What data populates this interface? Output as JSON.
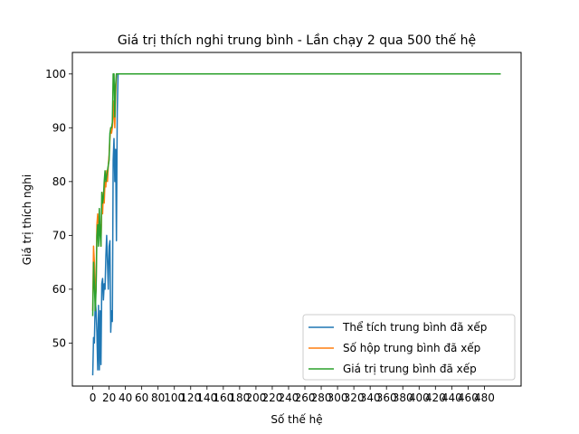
{
  "chart_data": {
    "type": "line",
    "title": "Giá trị thích nghi trung bình - Lần chạy 2 qua 500 thế hệ",
    "xlabel": "Số thế hệ",
    "ylabel": "Giá trị thích nghi",
    "xlim": [
      -25,
      525
    ],
    "ylim": [
      42,
      104
    ],
    "xticks": [
      0,
      20,
      40,
      60,
      80,
      100,
      120,
      140,
      160,
      180,
      200,
      220,
      240,
      260,
      280,
      300,
      320,
      340,
      360,
      380,
      400,
      420,
      440,
      460,
      480
    ],
    "yticks": [
      50,
      60,
      70,
      80,
      90,
      100
    ],
    "grid": false,
    "legend_position": "lower-right",
    "series": [
      {
        "name": "Thể tích trung bình đã xếp",
        "color": "#1f77b4",
        "x": [
          0,
          1,
          2,
          3,
          4,
          5,
          6,
          7,
          8,
          9,
          10,
          11,
          12,
          13,
          14,
          15,
          16,
          17,
          18,
          19,
          20,
          21,
          22,
          23,
          24,
          25,
          26,
          27,
          28,
          29,
          30,
          31,
          32,
          33,
          34,
          35,
          500
        ],
        "y": [
          44,
          51,
          50,
          58,
          56,
          52,
          45,
          57,
          45,
          56,
          46,
          61,
          62,
          58,
          61,
          60,
          66,
          70,
          65,
          60,
          68,
          69,
          52,
          56,
          54,
          84,
          88,
          80,
          86,
          69,
          93,
          100,
          100,
          100,
          100,
          100,
          100
        ]
      },
      {
        "name": "Số hộp trung bình đã xếp",
        "color": "#ff7f0e",
        "x": [
          0,
          1,
          2,
          3,
          4,
          5,
          6,
          7,
          8,
          9,
          10,
          11,
          12,
          13,
          14,
          15,
          16,
          17,
          18,
          19,
          20,
          21,
          22,
          23,
          24,
          25,
          26,
          27,
          28,
          29,
          30,
          31,
          32,
          33,
          34,
          35,
          500
        ],
        "y": [
          56,
          68,
          65,
          58,
          60,
          72,
          74,
          72,
          70,
          72,
          68,
          76,
          74,
          78,
          76,
          80,
          79,
          82,
          80,
          83,
          85,
          88,
          90,
          89,
          90,
          92,
          95,
          90,
          96,
          100,
          100,
          100,
          100,
          100,
          100,
          100,
          100
        ]
      },
      {
        "name": "Giá trị trung bình đã xếp",
        "color": "#2ca02c",
        "x": [
          0,
          1,
          2,
          3,
          4,
          5,
          6,
          7,
          8,
          9,
          10,
          11,
          12,
          13,
          14,
          15,
          16,
          17,
          18,
          19,
          20,
          21,
          22,
          23,
          24,
          25,
          26,
          27,
          28,
          29,
          30,
          31,
          32,
          33,
          34,
          35,
          500
        ],
        "y": [
          55,
          65,
          61,
          56,
          60,
          70,
          72,
          68,
          75,
          70,
          68,
          78,
          76,
          77,
          80,
          82,
          80,
          81,
          82,
          83,
          84,
          89,
          90,
          90,
          91,
          100,
          100,
          92,
          98,
          100,
          100,
          100,
          100,
          100,
          100,
          100,
          100
        ]
      }
    ]
  }
}
